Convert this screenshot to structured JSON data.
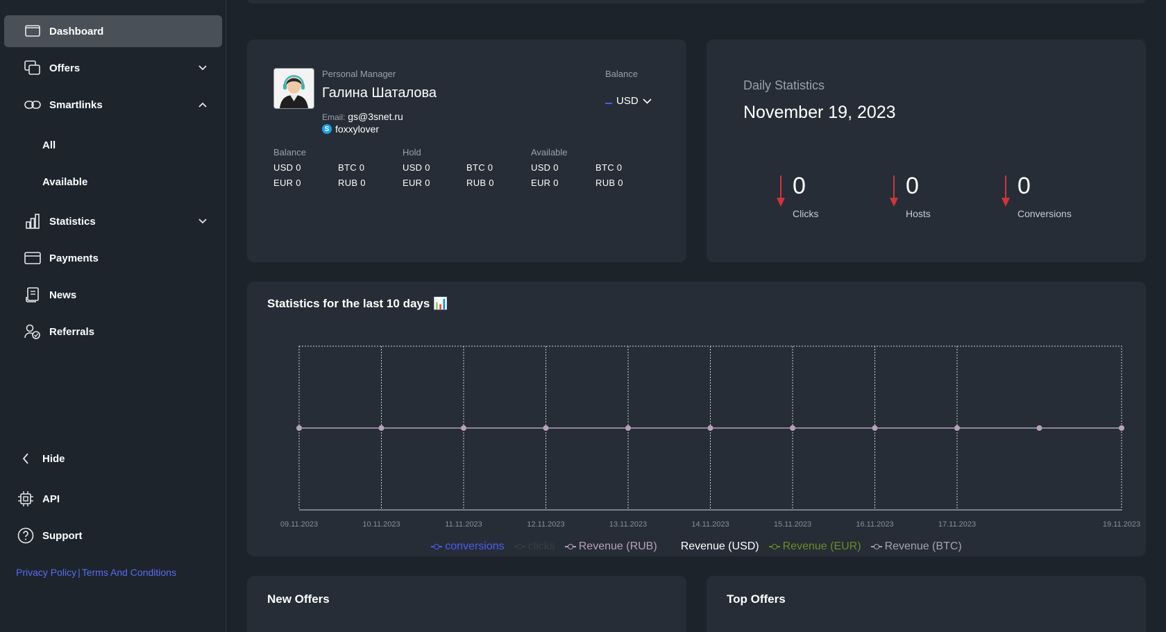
{
  "sidebar": {
    "nav": [
      {
        "label": "Dashboard",
        "icon": "monitor-icon",
        "active": true
      },
      {
        "label": "Offers",
        "icon": "offers-icon",
        "chevron": "down"
      },
      {
        "label": "Smartlinks",
        "icon": "link-icon",
        "chevron": "up"
      },
      {
        "label": "Statistics",
        "icon": "bar-chart-icon",
        "chevron": "down"
      },
      {
        "label": "Payments",
        "icon": "card-icon"
      },
      {
        "label": "News",
        "icon": "news-icon"
      },
      {
        "label": "Referrals",
        "icon": "referrals-icon"
      }
    ],
    "smartlinks_sub": [
      "All",
      "Available"
    ],
    "bottom": [
      {
        "label": "Hide",
        "icon": "chevron-left-icon"
      },
      {
        "label": "API",
        "icon": "chip-icon"
      },
      {
        "label": "Support",
        "icon": "help-icon"
      }
    ],
    "privacy_label": "Privacy Policy",
    "separator": "|",
    "terms_label": "Terms And Conditions"
  },
  "manager": {
    "label": "Personal Manager",
    "name": "Галина Шаталова",
    "email_label": "Email:",
    "email": "gs@3snet.ru",
    "skype": "foxxylover",
    "balance_label": "Balance",
    "currency": "USD",
    "groups": [
      {
        "label": "Balance",
        "cells": [
          "USD 0",
          "BTC 0",
          "EUR 0",
          "RUB 0"
        ]
      },
      {
        "label": "Hold",
        "cells": [
          "USD 0",
          "BTC 0",
          "EUR 0",
          "RUB 0"
        ]
      },
      {
        "label": "Available",
        "cells": [
          "USD 0",
          "BTC 0",
          "EUR 0",
          "RUB 0"
        ]
      }
    ]
  },
  "daily": {
    "title": "Daily Statistics",
    "date": "November 19, 2023",
    "metrics": [
      {
        "value": "0",
        "label": "Clicks"
      },
      {
        "value": "0",
        "label": "Hosts"
      },
      {
        "value": "0",
        "label": "Conversions"
      }
    ],
    "arrow_color": "#d0343a"
  },
  "chart_section": {
    "title": "Statistics for the last 10 days 📊"
  },
  "chart_data": {
    "type": "line",
    "x": [
      "09.11.2023",
      "10.11.2023",
      "11.11.2023",
      "12.11.2023",
      "13.11.2023",
      "14.11.2023",
      "15.11.2023",
      "16.11.2023",
      "17.11.2023",
      "18.11.2023",
      "19.11.2023"
    ],
    "x_tick_labels": [
      "09.11.2023",
      "10.11.2023",
      "11.11.2023",
      "12.11.2023",
      "13.11.2023",
      "14.11.2023",
      "15.11.2023",
      "16.11.2023",
      "17.11.2023",
      "",
      "19.11.2023"
    ],
    "series": [
      {
        "name": "conversions",
        "color": "#4a5ef0",
        "values": [
          0,
          0,
          0,
          0,
          0,
          0,
          0,
          0,
          0,
          0,
          0
        ]
      },
      {
        "name": "clicks",
        "color": "#3a3f45",
        "values": [
          0,
          0,
          0,
          0,
          0,
          0,
          0,
          0,
          0,
          0,
          0
        ]
      },
      {
        "name": "Revenue (RUB)",
        "color": "#b7a1bd",
        "values": [
          0,
          0,
          0,
          0,
          0,
          0,
          0,
          0,
          0,
          0,
          0
        ]
      },
      {
        "name": "Revenue (USD)",
        "color": "#ffffff",
        "values": [
          0,
          0,
          0,
          0,
          0,
          0,
          0,
          0,
          0,
          0,
          0
        ]
      },
      {
        "name": "Revenue (EUR)",
        "color": "#6b8e23",
        "values": [
          0,
          0,
          0,
          0,
          0,
          0,
          0,
          0,
          0,
          0,
          0
        ]
      },
      {
        "name": "Revenue (BTC)",
        "color": "#a9a2b3",
        "values": [
          0,
          0,
          0,
          0,
          0,
          0,
          0,
          0,
          0,
          0,
          0
        ]
      }
    ],
    "legend_position": "bottom",
    "grid": true
  },
  "new_offers": {
    "title": "New Offers"
  },
  "top_offers": {
    "title": "Top Offers"
  }
}
